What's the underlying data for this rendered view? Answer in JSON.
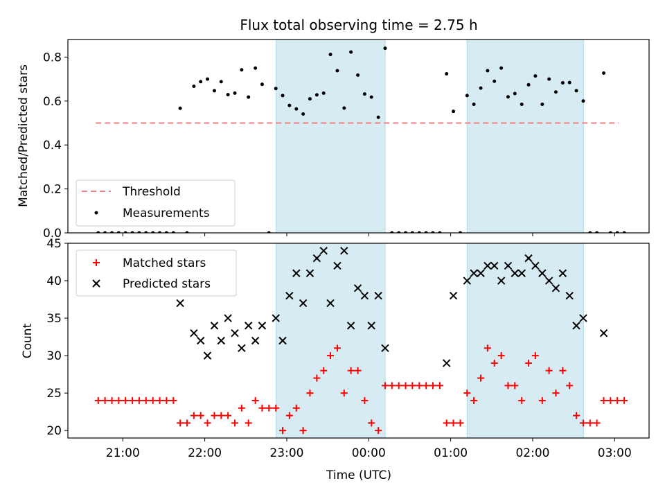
{
  "chart_data": [
    {
      "type": "scatter",
      "title": "Flux total observing time = 2.75 h",
      "ylabel": "Matched/Predicted stars",
      "xlim_hours": [
        20.33,
        27.42
      ],
      "ylim": [
        0,
        0.88
      ],
      "yticks": [
        "0.0",
        "0.2",
        "0.4",
        "0.6",
        "0.8"
      ],
      "ytick_values": [
        0.0,
        0.2,
        0.4,
        0.6,
        0.8
      ],
      "shaded_intervals_hours": [
        [
          22.87,
          24.2
        ],
        [
          25.2,
          26.62
        ]
      ],
      "threshold": {
        "name": "Threshold",
        "value": 0.5,
        "x_range_hours": [
          20.67,
          27.05
        ],
        "color": "#f08080"
      },
      "legend": {
        "position": "lower-left",
        "entries": [
          "Threshold",
          "Measurements"
        ]
      },
      "series": [
        {
          "name": "Measurements",
          "color": "#000000",
          "x_hours": [
            20.7,
            20.783,
            20.867,
            20.95,
            21.033,
            21.117,
            21.2,
            21.283,
            21.367,
            21.45,
            21.533,
            21.617,
            21.7,
            21.783,
            21.867,
            21.95,
            22.033,
            22.117,
            22.2,
            22.283,
            22.367,
            22.45,
            22.533,
            22.617,
            22.7,
            22.783,
            22.867,
            22.95,
            23.033,
            23.117,
            23.2,
            23.283,
            23.367,
            23.45,
            23.533,
            23.617,
            23.7,
            23.783,
            23.867,
            23.95,
            24.033,
            24.117,
            24.2,
            24.283,
            24.367,
            24.45,
            24.533,
            24.617,
            24.7,
            24.783,
            24.867,
            24.95,
            25.033,
            25.117,
            25.2,
            25.283,
            25.367,
            25.45,
            25.533,
            25.617,
            25.7,
            25.783,
            25.867,
            25.95,
            26.033,
            26.117,
            26.2,
            26.283,
            26.367,
            26.45,
            26.533,
            26.617,
            26.7,
            26.783,
            26.867,
            26.95,
            27.033,
            27.117
          ],
          "y": [
            0,
            0,
            0,
            0,
            0,
            0,
            0,
            0,
            0,
            0,
            0,
            0,
            0.567,
            0,
            0.667,
            0.688,
            0.7,
            0.647,
            0.688,
            0.629,
            0.636,
            0.742,
            0.618,
            0.75,
            0.676,
            0,
            0.657,
            0.625,
            0.58,
            0.564,
            0.541,
            0.61,
            0.628,
            0.636,
            0.812,
            0.738,
            0.568,
            0.823,
            0.718,
            0.632,
            0.618,
            0.526,
            0.84,
            0,
            0,
            0,
            0,
            0,
            0,
            0,
            0,
            0.724,
            0.553,
            0,
            0.625,
            0.585,
            0.659,
            0.738,
            0.69,
            0.75,
            0.619,
            0.634,
            0.585,
            0.674,
            0.714,
            0.585,
            0.7,
            0.641,
            0.683,
            0.684,
            0.647,
            0.6,
            0,
            0,
            0.727,
            0,
            0,
            0
          ]
        }
      ]
    },
    {
      "type": "scatter",
      "xlabel": "Time (UTC)",
      "ylabel": "Count",
      "xlim_hours": [
        20.33,
        27.42
      ],
      "ylim": [
        19,
        45
      ],
      "yticks": [
        "20",
        "25",
        "30",
        "35",
        "40",
        "45"
      ],
      "ytick_values": [
        20,
        25,
        30,
        35,
        40,
        45
      ],
      "xticks": [
        "21:00",
        "22:00",
        "23:00",
        "00:00",
        "01:00",
        "02:00",
        "03:00"
      ],
      "xtick_values_hours": [
        21,
        22,
        23,
        24,
        25,
        26,
        27
      ],
      "shaded_intervals_hours": [
        [
          22.87,
          24.2
        ],
        [
          25.2,
          26.62
        ]
      ],
      "legend": {
        "position": "top-left",
        "entries": [
          "Matched stars",
          "Predicted stars"
        ]
      },
      "series": [
        {
          "name": "Matched stars",
          "marker": "plus",
          "color": "#ff0000",
          "x_hours": [
            20.7,
            20.783,
            20.867,
            20.95,
            21.033,
            21.117,
            21.2,
            21.283,
            21.367,
            21.45,
            21.533,
            21.617,
            21.7,
            21.783,
            21.867,
            21.95,
            22.033,
            22.117,
            22.2,
            22.283,
            22.367,
            22.45,
            22.533,
            22.617,
            22.7,
            22.783,
            22.867,
            22.95,
            23.033,
            23.117,
            23.2,
            23.283,
            23.367,
            23.45,
            23.533,
            23.617,
            23.7,
            23.783,
            23.867,
            23.95,
            24.033,
            24.117,
            24.2,
            24.283,
            24.367,
            24.45,
            24.533,
            24.617,
            24.7,
            24.783,
            24.867,
            24.95,
            25.033,
            25.117,
            25.2,
            25.283,
            25.367,
            25.45,
            25.533,
            25.617,
            25.7,
            25.783,
            25.867,
            25.95,
            26.033,
            26.117,
            26.2,
            26.283,
            26.367,
            26.45,
            26.533,
            26.617,
            26.7,
            26.783,
            26.867,
            26.95,
            27.033,
            27.117
          ],
          "y": [
            24,
            24,
            24,
            24,
            24,
            24,
            24,
            24,
            24,
            24,
            24,
            24,
            21,
            21,
            22,
            22,
            21,
            22,
            22,
            22,
            21,
            23,
            21,
            24,
            23,
            23,
            23,
            20,
            22,
            23,
            20,
            25,
            27,
            28,
            30,
            31,
            25,
            28,
            28,
            24,
            21,
            20,
            26,
            26,
            26,
            26,
            26,
            26,
            26,
            26,
            26,
            21,
            21,
            21,
            25,
            24,
            27,
            31,
            29,
            30,
            26,
            26,
            24,
            29,
            30,
            24,
            28,
            25,
            28,
            26,
            22,
            21,
            21,
            21,
            24,
            24,
            24,
            24
          ]
        },
        {
          "name": "Predicted stars",
          "marker": "x",
          "color": "#000000",
          "x_hours": [
            21.7,
            21.867,
            21.95,
            22.033,
            22.117,
            22.2,
            22.283,
            22.367,
            22.45,
            22.533,
            22.617,
            22.7,
            22.867,
            22.95,
            23.033,
            23.117,
            23.2,
            23.283,
            23.367,
            23.45,
            23.533,
            23.617,
            23.7,
            23.783,
            23.867,
            23.95,
            24.033,
            24.117,
            24.2,
            24.95,
            25.033,
            25.2,
            25.283,
            25.367,
            25.45,
            25.533,
            25.617,
            25.7,
            25.783,
            25.867,
            25.95,
            26.033,
            26.117,
            26.2,
            26.283,
            26.367,
            26.45,
            26.533,
            26.617,
            26.867
          ],
          "y": [
            37,
            33,
            32,
            30,
            34,
            32,
            35,
            33,
            31,
            34,
            32,
            34,
            35,
            32,
            38,
            41,
            37,
            41,
            43,
            44,
            37,
            42,
            44,
            34,
            39,
            38,
            34,
            38,
            31,
            29,
            38,
            40,
            41,
            41,
            42,
            42,
            40,
            42,
            41,
            41,
            43,
            42,
            41,
            40,
            39,
            41,
            38,
            34,
            35,
            33
          ]
        }
      ]
    }
  ]
}
